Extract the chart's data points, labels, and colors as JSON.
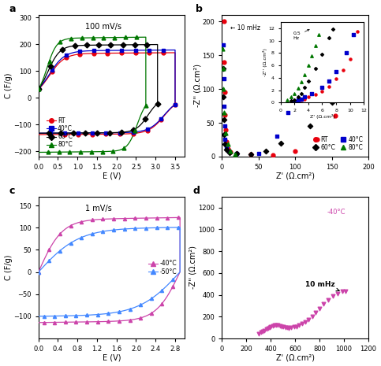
{
  "panel_a": {
    "label": "a",
    "annotation": "100 mV/s",
    "xlabel": "E (V)",
    "ylabel": "C (F/g)",
    "xlim": [
      0,
      3.75
    ],
    "ylim": [
      -220,
      310
    ],
    "yticks": [
      -200,
      -100,
      0,
      100,
      200,
      300
    ],
    "xticks": [
      0,
      0.5,
      1.0,
      1.5,
      2.0,
      2.5,
      3.0,
      3.5
    ]
  },
  "panel_b": {
    "label": "b",
    "xlabel": "Z' (Ω.cm²)",
    "ylabel": "-Z'' (Ω.cm²)",
    "xlim": [
      0,
      200
    ],
    "ylim": [
      0,
      210
    ],
    "xticks": [
      0,
      50,
      100,
      150,
      200
    ],
    "yticks": [
      0,
      50,
      100,
      150,
      200
    ]
  },
  "panel_c": {
    "label": "c",
    "annotation": "1 mV/s",
    "xlabel": "E (V)",
    "ylabel": "C (F/g)",
    "xlim": [
      0,
      3.0
    ],
    "ylim": [
      -150,
      170
    ],
    "yticks": [
      -100,
      -50,
      0,
      50,
      100,
      150
    ],
    "xticks": [
      0,
      0.4,
      0.8,
      1.2,
      1.6,
      2.0,
      2.4,
      2.8
    ]
  },
  "panel_d": {
    "label": "d",
    "xlabel": "Z' (Ω.cm²)",
    "ylabel": "-Z'' (Ω.cm²)",
    "xlim": [
      0,
      1200
    ],
    "ylim": [
      0,
      1300
    ],
    "xticks": [
      0,
      200,
      400,
      600,
      800,
      1000,
      1200
    ],
    "yticks": [
      0,
      200,
      400,
      600,
      800,
      1000,
      1200
    ]
  },
  "colors": {
    "RT": "#e8000d",
    "40C": "#0000cc",
    "60C": "#000000",
    "80C": "#007700",
    "m40C": "#cc44aa",
    "m50C": "#4488ff"
  },
  "fig_width": 4.83,
  "fig_height": 4.65,
  "dpi": 100
}
